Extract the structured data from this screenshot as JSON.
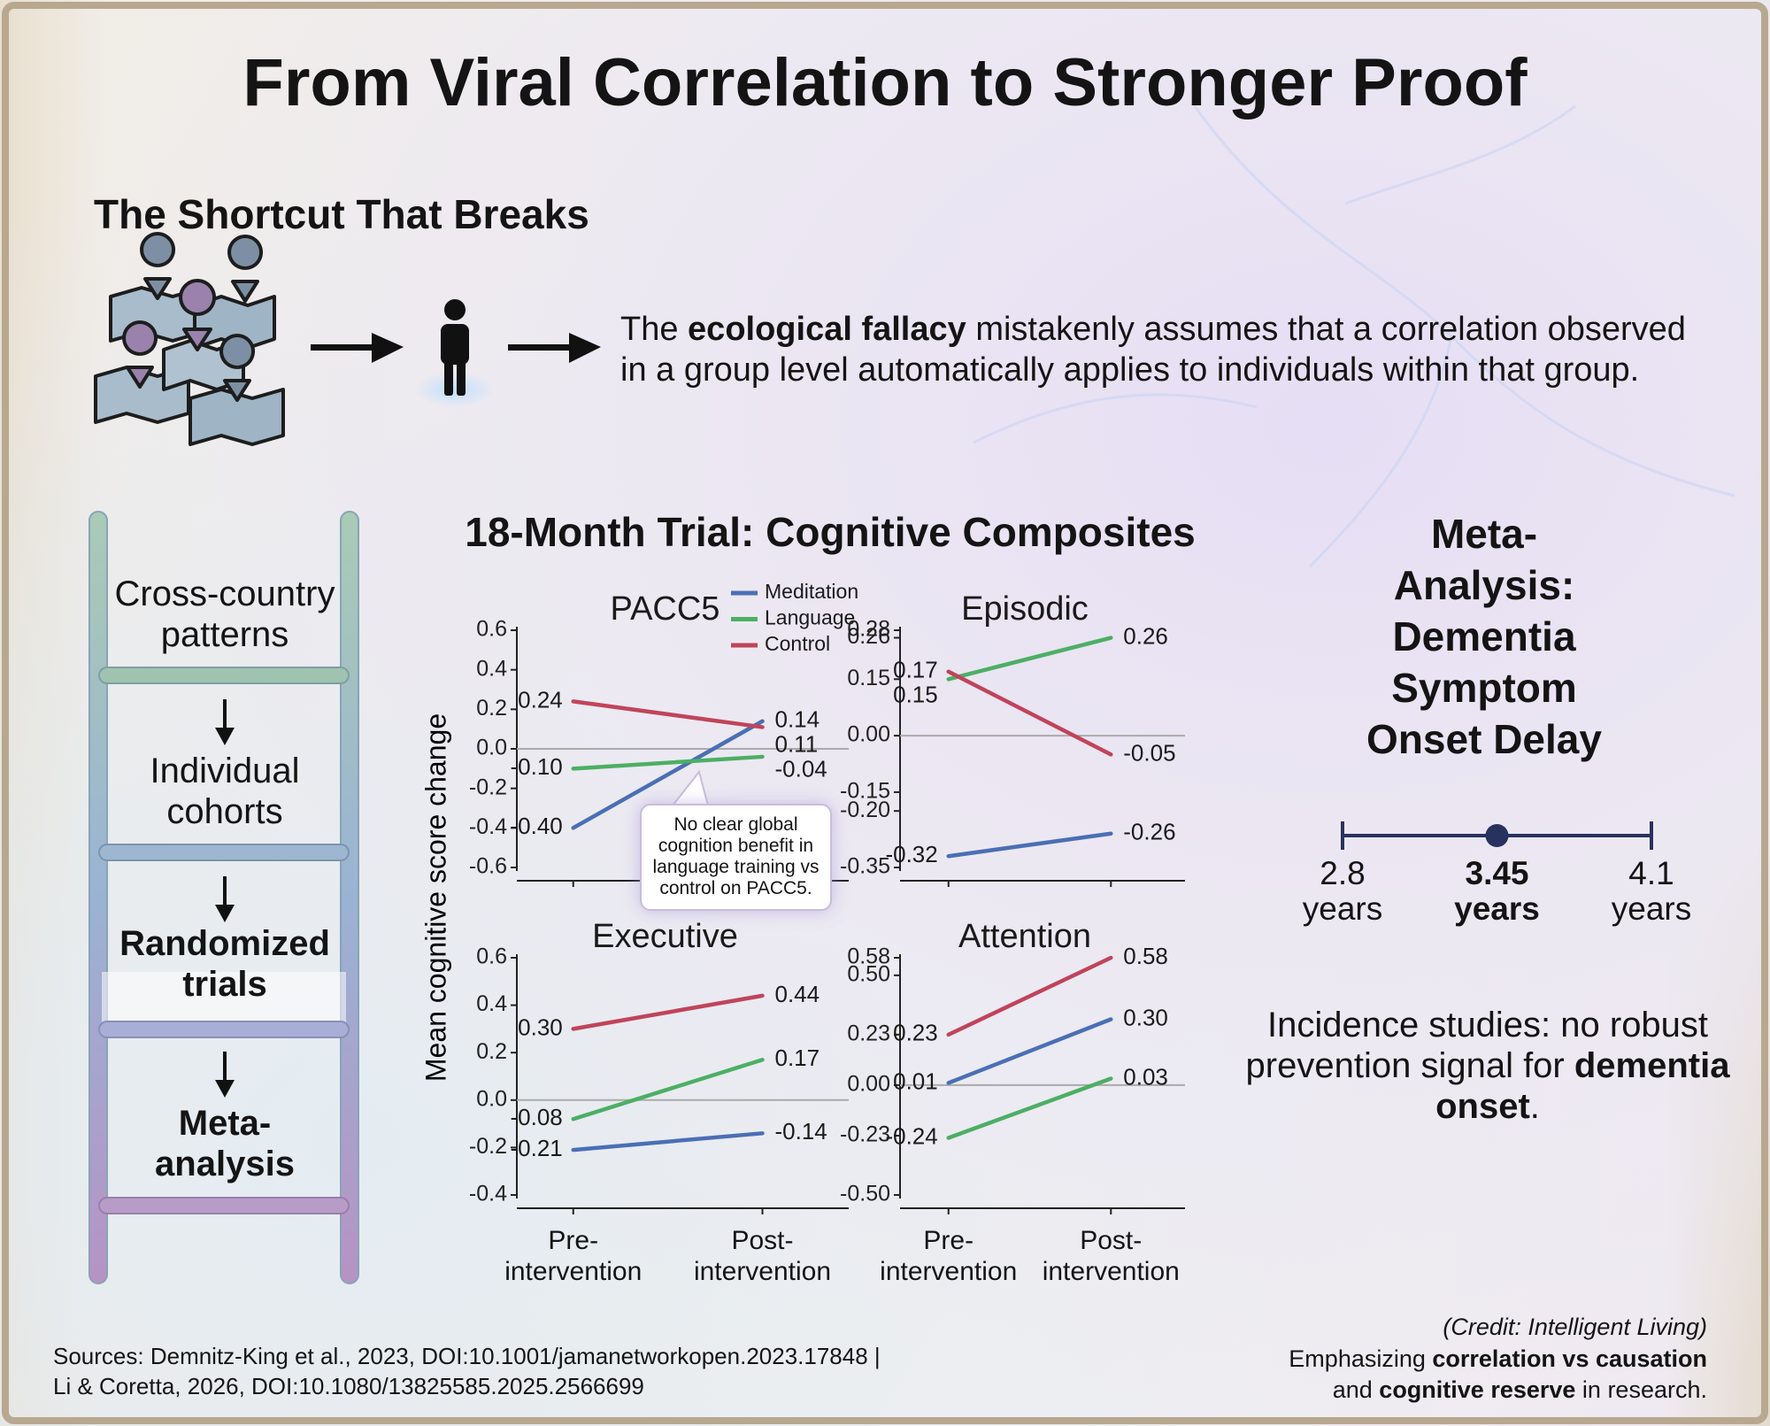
{
  "title": "From Viral Correlation to Stronger Proof",
  "shortcut": {
    "heading": "The Shortcut That Breaks",
    "text": [
      "The ",
      "ecological fallacy",
      " mistakenly assumes that a correlation observed in a group level automatically applies to individuals within that group."
    ]
  },
  "ladder": [
    "Cross-country patterns",
    "Individual cohorts",
    "Randomized trials",
    "Meta-\nanalysis"
  ],
  "trial": {
    "title": "18-Month Trial: Cognitive Composites",
    "ylabel": "Mean cognitive score change"
  },
  "chart_data": [
    {
      "type": "line",
      "title": "PACC5",
      "categories": [
        null,
        null
      ],
      "legend": "upper right",
      "annotation": "No clear global cognition benefit in language training vs control on PACC5.",
      "ylim": [
        -0.6,
        0.6
      ],
      "yticks": [
        0.6,
        0.4,
        0.2,
        {
          "value": 0,
          "label": "0.0"
        },
        -0.2,
        -0.4,
        -0.6
      ],
      "series": [
        {
          "name": "Meditation",
          "color": "#4a6fb5",
          "values": [
            -0.4,
            0.14
          ],
          "value_labels": [
            "-0.40",
            "0.14"
          ]
        },
        {
          "name": "Language",
          "color": "#4caf64",
          "values": [
            -0.1,
            -0.04
          ],
          "value_labels": [
            "-0.10",
            "-0.04"
          ]
        },
        {
          "name": "Control",
          "color": "#c0445a",
          "values": [
            0.24,
            0.11
          ],
          "value_labels": [
            "0.24",
            "0.11"
          ]
        }
      ]
    },
    {
      "type": "line",
      "title": "Episodic",
      "categories": [
        null,
        null
      ],
      "ylim": [
        -0.35,
        0.28
      ],
      "yticks": [
        0.26,
        0.28,
        0.15,
        {
          "value": 0,
          "label": "0.00"
        },
        -0.15,
        {
          "value": -0.2,
          "label": "-0.20"
        },
        -0.35
      ],
      "series": [
        {
          "color": "#4a6fb5",
          "values": [
            -0.32,
            -0.26
          ],
          "value_labels": [
            "-0.32",
            "-0.26"
          ]
        },
        {
          "color": "#4caf64",
          "values": [
            0.15,
            0.26
          ],
          "value_labels": [
            "0.15",
            "0.26"
          ]
        },
        {
          "color": "#c0445a",
          "values": [
            0.17,
            -0.05
          ],
          "value_labels": [
            "0.17",
            "-0.05"
          ]
        }
      ]
    },
    {
      "type": "line",
      "title": "Executive",
      "categories": [
        "Pre-\nintervention",
        "Post-\nintervention"
      ],
      "ylim": [
        -0.4,
        0.6
      ],
      "yticks": [
        0.6,
        0.4,
        0.2,
        {
          "value": 0,
          "label": "0.0"
        },
        -0.2,
        -0.4
      ],
      "series": [
        {
          "color": "#4a6fb5",
          "values": [
            -0.21,
            -0.14
          ],
          "value_labels": [
            "-0.21",
            "-0.14"
          ]
        },
        {
          "color": "#4caf64",
          "values": [
            -0.08,
            0.17
          ],
          "value_labels": [
            "-0.08",
            "0.17"
          ]
        },
        {
          "color": "#c0445a",
          "values": [
            0.3,
            0.44
          ],
          "value_labels": [
            "0.30",
            "0.44"
          ]
        }
      ]
    },
    {
      "type": "line",
      "title": "Attention",
      "categories": [
        "Pre-\nintervention",
        "Post-\nintervention"
      ],
      "ylim": [
        -0.5,
        0.58
      ],
      "yticks": [
        0.58,
        {
          "value": 0.5,
          "label": "0.50"
        },
        0.23,
        {
          "value": 0,
          "label": "0.00"
        },
        -0.23,
        {
          "value": -0.5,
          "label": "-0.50"
        }
      ],
      "series": [
        {
          "color": "#4a6fb5",
          "values": [
            0.01,
            0.3
          ],
          "value_labels": [
            "0.01",
            "0.30"
          ]
        },
        {
          "color": "#4caf64",
          "values": [
            -0.24,
            0.03
          ],
          "value_labels": [
            "-0.24",
            "0.03"
          ]
        },
        {
          "color": "#c0445a",
          "values": [
            0.23,
            0.58
          ],
          "value_labels": [
            "0.23",
            "0.58"
          ]
        }
      ]
    },
    {
      "type": "interval",
      "title": "Meta-Analysis:\nDementia Symptom\nOnset Delay",
      "color": "#28325e",
      "values": [
        2.8,
        3.45,
        4.1
      ],
      "unit": "years",
      "highlight": 1,
      "xlim": [
        2.8,
        4.1
      ]
    }
  ],
  "incidence": [
    "Incidence studies: no robust prevention signal for ",
    "dementia onset",
    "."
  ],
  "sources": [
    "Sources: Demnitz-King et al., 2023, DOI:10.1001/jamanetworkopen.2023.17848 |",
    "Li & Coretta, 2026, DOI:10.1080/13825585.2025.2566699"
  ],
  "credit": {
    "note": "(Credit: Intelligent Living)",
    "text": [
      "Emphasizing ",
      "correlation vs causation",
      " and ",
      "cognitive reserve",
      " in research."
    ]
  }
}
